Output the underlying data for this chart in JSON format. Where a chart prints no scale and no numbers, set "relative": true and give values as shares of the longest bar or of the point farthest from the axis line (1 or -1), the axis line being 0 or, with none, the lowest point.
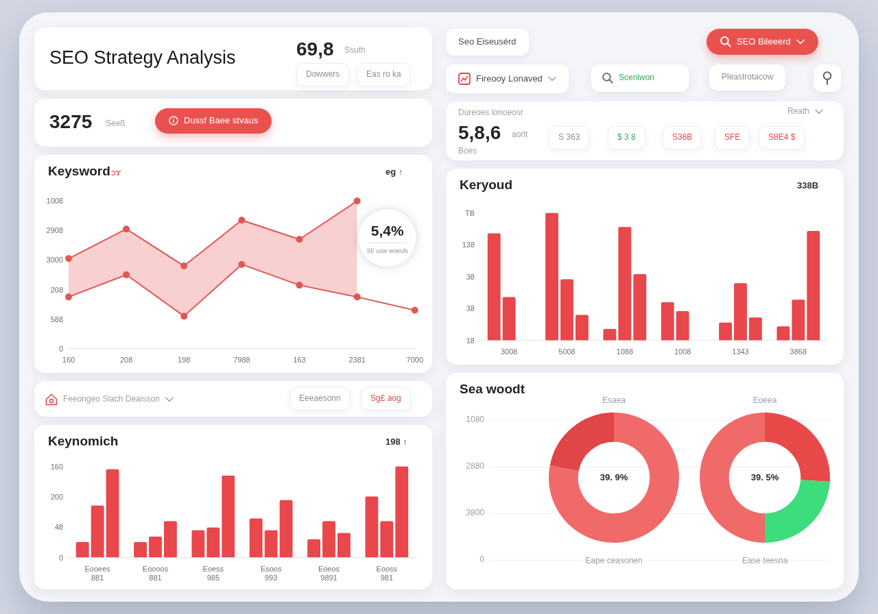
{
  "chart_data": [
    {
      "type": "other",
      "title": "SEO Strategy Analysis",
      "annotations": [
        "69,8",
        "Ssuth",
        "Dowwers",
        "Eas ro ka"
      ]
    },
    {
      "type": "other",
      "annotations": [
        "3275",
        "Seeß",
        "Dussf Baee stvaus"
      ]
    },
    {
      "type": "line",
      "title": "Keysword",
      "relative": true,
      "categories": [
        "160",
        "208",
        "198",
        "7988",
        "163",
        "2381",
        "7000"
      ],
      "series": [
        {
          "type": "area",
          "color": "#e25653",
          "values": [
            0.61,
            0.81,
            0.56,
            0.87,
            0.74,
            1.0,
            null
          ]
        },
        {
          "type": "line",
          "color": "#e25653",
          "values": [
            0.35,
            0.5,
            0.22,
            0.57,
            0.43,
            0.35,
            0.26
          ]
        }
      ],
      "marker": "circle",
      "line_style": "solid",
      "annotations": [
        "ɔɤ",
        "eg ↑",
        {
          "text": "5,4%",
          "x": "2381",
          "y": 1.0
        },
        "Sl/ uow woeuls",
        "1008",
        "2908",
        "3000",
        "208",
        "588",
        "0"
      ]
    },
    {
      "type": "other",
      "annotations": [
        "Seo Eiseusérd",
        "SEO Bileeerd",
        "Fireooy Lonaved",
        "Scenlwon",
        "Pleastrotacow"
      ]
    },
    {
      "type": "other",
      "annotations": [
        "Dureoes lonoeosr",
        "5,8,6",
        "aorlt",
        "S 363",
        "Boes",
        "$ 3 8",
        "S36B",
        "SFE",
        "S8E4 $",
        "Reath"
      ]
    },
    {
      "type": "bar",
      "title": "Keryoud",
      "relative": true,
      "categories": [
        "3008",
        "5008",
        "1088",
        "1008",
        "1343",
        "3868"
      ],
      "series": [
        {
          "color": "#e8474b",
          "values": [
            0.84,
            1.0,
            0.09,
            0.3,
            0.14,
            0.11
          ]
        },
        {
          "color": "#e8474b",
          "values": [
            0.34,
            0.48,
            0.89,
            0.23,
            0.45,
            0.32
          ]
        },
        {
          "color": "#e8474b",
          "values": [
            null,
            0.2,
            0.52,
            null,
            0.18,
            0.86
          ]
        }
      ],
      "annotations": [
        "338B",
        "TB",
        "138",
        "38",
        "38",
        "18"
      ]
    },
    {
      "type": "other",
      "annotations": [
        "Feeongeo Slach Deaisson",
        "Eeeaesonn",
        "Sg£ aog"
      ]
    },
    {
      "type": "bar",
      "title": "Keynomich",
      "relative": true,
      "categories": [
        "Eooees\n881",
        "Eoooos\n881",
        "Eoess\n985",
        "Esoos\n993",
        "Eoeos\n9891",
        "Eooss\n981"
      ],
      "series": [
        {
          "color": "#e8474b",
          "values": [
            0.17,
            0.17,
            0.3,
            0.43,
            0.2,
            0.67
          ]
        },
        {
          "color": "#e8474b",
          "values": [
            0.57,
            0.23,
            0.33,
            0.3,
            0.4,
            0.4
          ]
        },
        {
          "color": "#e8474b",
          "values": [
            0.97,
            0.4,
            0.9,
            0.63,
            0.27,
            1.0
          ]
        }
      ],
      "annotations": [
        "198 ↑",
        "160",
        "200",
        "48",
        "0"
      ]
    },
    {
      "type": "other",
      "title": "Sea woodt",
      "annotations": [
        "1080",
        "2880",
        "3800",
        "0"
      ]
    },
    {
      "type": "donut",
      "categories": [
        null,
        null
      ],
      "values": [
        78,
        22
      ],
      "colors": [
        "#f06a6a",
        "#e04547"
      ],
      "annotations": [
        "39. 9%",
        "Esaea",
        "Eape ceasonen"
      ]
    },
    {
      "type": "donut",
      "categories": [
        null,
        null,
        null
      ],
      "values": [
        26,
        24,
        50
      ],
      "colors": [
        "#e84a4a",
        "#3ddc7c",
        "#f06a6a"
      ],
      "annotations": [
        "39. 5%",
        "Eoeea",
        "Ease teesna"
      ]
    }
  ]
}
